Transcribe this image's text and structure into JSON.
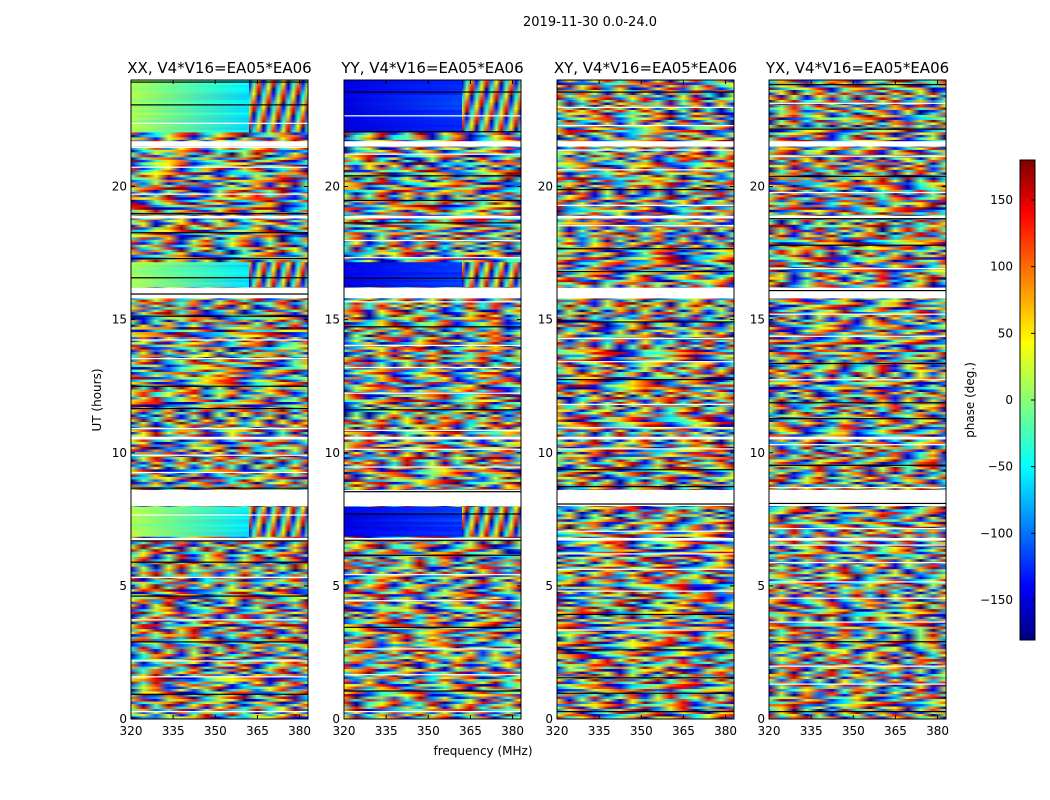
{
  "chart_data": {
    "type": "heatmap",
    "title": "2019-11-30 0.0-24.0",
    "xlabel": "frequency (MHz)",
    "ylabel": "UT (hours)",
    "xlim": [
      320,
      383
    ],
    "ylim": [
      0,
      24
    ],
    "x_ticks": [
      "320",
      "335",
      "350",
      "365",
      "380"
    ],
    "y_ticks": [
      "0",
      "5",
      "10",
      "15",
      "20"
    ],
    "panels": [
      {
        "title": "XX, V4*V16=EA05*EA06",
        "pol": "XX"
      },
      {
        "title": "YY, V4*V16=EA05*EA06",
        "pol": "YY"
      },
      {
        "title": "XY, V4*V16=EA05*EA06",
        "pol": "XY"
      },
      {
        "title": "YX, V4*V16=EA05*EA06",
        "pol": "YX"
      }
    ],
    "colorbar": {
      "label": "phase (deg.)",
      "range": [
        -180,
        180
      ],
      "ticks": [
        "−150",
        "−100",
        "−50",
        "0",
        "50",
        "100",
        "150"
      ],
      "tick_values": [
        -150,
        -100,
        -50,
        0,
        50,
        100,
        150
      ],
      "colormap": "jet",
      "colormap_stops": [
        "#00007f",
        "#0000ff",
        "#00ffff",
        "#ffff00",
        "#ff0000",
        "#7f0000"
      ]
    },
    "flagged_ut_gaps_hours": [
      [
        8.0,
        8.6
      ],
      [
        10.5,
        10.6
      ],
      [
        15.8,
        16.2
      ],
      [
        21.5,
        21.7
      ],
      [
        6.7,
        6.8
      ],
      [
        18.8,
        18.9
      ]
    ],
    "smooth_phase_region": {
      "freq_mhz": [
        320,
        362
      ],
      "ut_hours": [
        [
          16.2,
          17.2
        ],
        [
          6.8,
          8.0
        ],
        [
          22.0,
          24.0
        ]
      ],
      "xx_phase_deg": [
        10,
        -60
      ],
      "yy_phase_deg": [
        -150,
        -120
      ]
    }
  }
}
